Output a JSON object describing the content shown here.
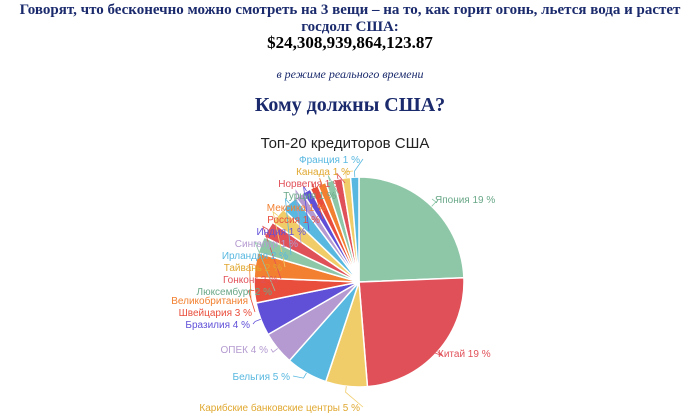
{
  "page": {
    "headline": "Говорят, что бесконечно можно смотреть на 3 вещи – на то, как горит огонь, льется вода и растет госдолг США:",
    "debt_value": "$24,308,939,864,123.87",
    "realtime_note": "в режиме реального времени",
    "question": "Кому должны США?"
  },
  "chart_data": {
    "type": "pie",
    "title": "Топ-20 кредиторов США",
    "unit": "%",
    "slices": [
      {
        "label": "Япония",
        "value": 19,
        "display": "19 %",
        "color": "#8ec7a8"
      },
      {
        "label": "Китай",
        "value": 19,
        "display": "19 %",
        "color": "#e05058"
      },
      {
        "label": "Карибские банковские центры",
        "value": 5,
        "display": "5 %",
        "color": "#f1cd6a"
      },
      {
        "label": "Бельгия",
        "value": 5,
        "display": "5 %",
        "color": "#58b8e0"
      },
      {
        "label": "ОПЕК",
        "value": 4,
        "display": "4 %",
        "color": "#b49ad0"
      },
      {
        "label": "Бразилия",
        "value": 4,
        "display": "4 %",
        "color": "#6050d8"
      },
      {
        "label": "Швейцария",
        "value": 3,
        "display": "3 %",
        "color": "#e94e3c"
      },
      {
        "label": "Великобритания",
        "value": 3,
        "display": "",
        "color": "#f28030"
      },
      {
        "label": "Люксембург",
        "value": 2,
        "display": "2 %",
        "color": "#8ec7a8"
      },
      {
        "label": "Гонконг",
        "value": 2,
        "display": "2 %",
        "color": "#e05058"
      },
      {
        "label": "Тайвань",
        "value": 2,
        "display": "2 %",
        "color": "#f1cd6a"
      },
      {
        "label": "Ирландия",
        "value": 2,
        "display": "2 %",
        "color": "#58b8e0"
      },
      {
        "label": "Сингапур",
        "value": 1,
        "display": "1 %",
        "color": "#b49ad0"
      },
      {
        "label": "Индия",
        "value": 1,
        "display": "1 %",
        "color": "#6050d8"
      },
      {
        "label": "Россия",
        "value": 1,
        "display": "1 %",
        "color": "#e94e3c"
      },
      {
        "label": "Мексика",
        "value": 1,
        "display": "1 %",
        "color": "#f28030"
      },
      {
        "label": "Турция",
        "value": 1,
        "display": "1 %",
        "color": "#8ec7a8"
      },
      {
        "label": "Норвегия",
        "value": 1,
        "display": "1 %",
        "color": "#e05058"
      },
      {
        "label": "Канада",
        "value": 1,
        "display": "1 %",
        "color": "#f1cd6a"
      },
      {
        "label": "Франция",
        "value": 1,
        "display": "1 %",
        "color": "#58b8e0"
      }
    ]
  }
}
